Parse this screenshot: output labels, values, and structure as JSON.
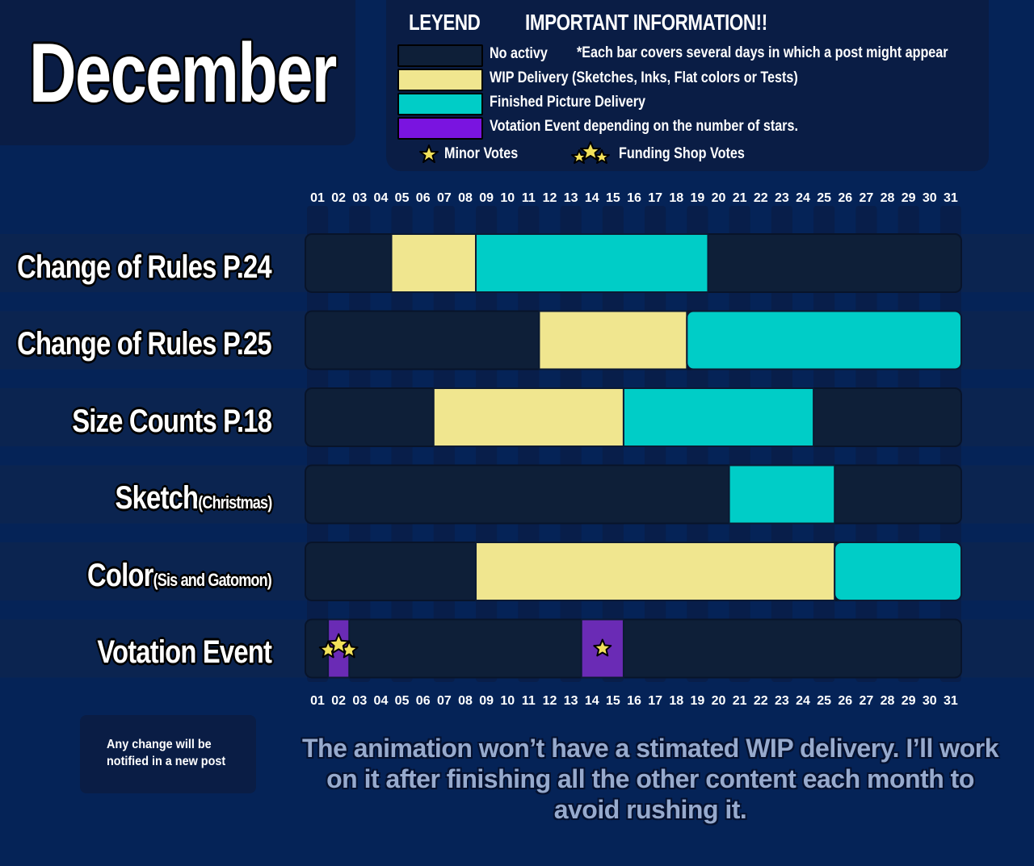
{
  "header": {
    "month": "December",
    "legend_title": "LEYEND",
    "info_title": "IMPORTANT INFORMATION!!",
    "note": "*Each bar covers several days in which a post  might appear"
  },
  "legend": [
    {
      "key": "none",
      "label": "No activy",
      "color": "#0e1f38"
    },
    {
      "key": "wip",
      "label": "WIP Delivery (Sketches, Inks, Flat colors or Tests)",
      "color": "#f0e68f"
    },
    {
      "key": "finished",
      "label": "Finished Picture Delivery",
      "color": "#00cdc7"
    },
    {
      "key": "vote",
      "label": "Votation Event depending on the number of stars.",
      "color": "#7a14e0"
    }
  ],
  "votes_legend": {
    "minor": {
      "label": "Minor Votes",
      "icon": "single-star-icon"
    },
    "funding": {
      "label": "Funding Shop Votes",
      "icon": "triple-star-icon"
    }
  },
  "chart_data": {
    "type": "gantt",
    "days": [
      "01",
      "02",
      "03",
      "04",
      "05",
      "06",
      "07",
      "08",
      "09",
      "10",
      "11",
      "12",
      "13",
      "14",
      "15",
      "16",
      "17",
      "18",
      "19",
      "20",
      "21",
      "22",
      "23",
      "24",
      "25",
      "26",
      "27",
      "28",
      "29",
      "30",
      "31"
    ],
    "rows": [
      {
        "label": "Change of Rules P.24",
        "sub": "",
        "segments": [
          {
            "type": "wip",
            "start": 4.5,
            "end": 8.5
          },
          {
            "type": "finished",
            "start": 8.5,
            "end": 19.5
          }
        ]
      },
      {
        "label": "Change of Rules P.25",
        "sub": "",
        "segments": [
          {
            "type": "wip",
            "start": 11.5,
            "end": 18.5
          },
          {
            "type": "finished",
            "start": 18.5,
            "end": 31.5
          }
        ]
      },
      {
        "label": "Size Counts P.18",
        "sub": "",
        "segments": [
          {
            "type": "wip",
            "start": 6.5,
            "end": 15.5
          },
          {
            "type": "finished",
            "start": 15.5,
            "end": 24.5
          }
        ]
      },
      {
        "label": "Sketch",
        "sub": "(Christmas)",
        "segments": [
          {
            "type": "finished",
            "start": 20.5,
            "end": 25.5
          }
        ]
      },
      {
        "label": "Color",
        "sub": "(Sis and Gatomon)",
        "segments": [
          {
            "type": "wip",
            "start": 8.5,
            "end": 25.5
          },
          {
            "type": "finished",
            "start": 25.5,
            "end": 31.5
          }
        ]
      },
      {
        "label": "Votation Event",
        "sub": "",
        "segments": [
          {
            "type": "vote",
            "start": 1.5,
            "end": 2.5,
            "stars": "funding"
          },
          {
            "type": "vote",
            "start": 13.5,
            "end": 15.5,
            "stars": "minor"
          }
        ]
      }
    ]
  },
  "footer": {
    "change_note": "Any change will be notified in a new post",
    "animation_note": "The animation won’t have a stimated WIP delivery. I’ll work on it after finishing all the other content each month to avoid rushing it."
  }
}
